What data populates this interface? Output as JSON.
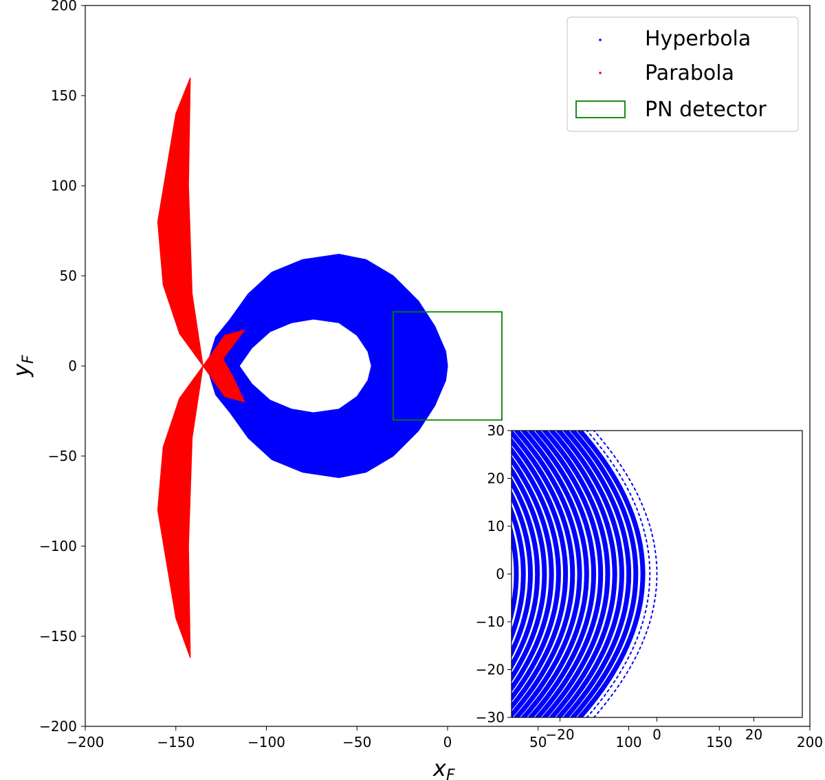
{
  "chart_data": [
    {
      "type": "scatter",
      "xlim": [
        -200,
        200
      ],
      "ylim": [
        -200,
        200
      ],
      "xlabel": "x",
      "xlabel_sub": "F",
      "ylabel": "y",
      "ylabel_sub": "F",
      "x_ticks": [
        -200,
        -150,
        -100,
        -50,
        0,
        50,
        100,
        150,
        200
      ],
      "y_ticks": [
        -200,
        -150,
        -100,
        -50,
        0,
        50,
        100,
        150,
        200
      ],
      "grid": false,
      "legend_position": "top-right",
      "series": [
        {
          "name": "Hyperbola",
          "color": "#0000ff",
          "shape": "closed loop around the focus region: outer boundary spans x from about -133 to about 0, y from -62 to 62; inner hole spans x from -80 to -42, y from -26 to 26",
          "outer_boundary": [
            [
              -133,
              0
            ],
            [
              -128,
              16
            ],
            [
              -120,
              26
            ],
            [
              -110,
              40
            ],
            [
              -97,
              52
            ],
            [
              -80,
              59
            ],
            [
              -60,
              62
            ],
            [
              -45,
              59
            ],
            [
              -30,
              50
            ],
            [
              -16,
              36
            ],
            [
              -7,
              22
            ],
            [
              -1,
              8
            ],
            [
              0,
              0
            ],
            [
              -1,
              -8
            ],
            [
              -7,
              -22
            ],
            [
              -16,
              -36
            ],
            [
              -30,
              -50
            ],
            [
              -45,
              -59
            ],
            [
              -60,
              -62
            ],
            [
              -80,
              -59
            ],
            [
              -97,
              -52
            ],
            [
              -110,
              -40
            ],
            [
              -120,
              -26
            ],
            [
              -128,
              -16
            ]
          ],
          "inner_hole": [
            [
              -115,
              0
            ],
            [
              -108,
              10
            ],
            [
              -98,
              19
            ],
            [
              -86,
              24
            ],
            [
              -74,
              26
            ],
            [
              -60,
              24
            ],
            [
              -50,
              17
            ],
            [
              -44,
              8
            ],
            [
              -42,
              0
            ],
            [
              -44,
              -8
            ],
            [
              -50,
              -17
            ],
            [
              -60,
              -24
            ],
            [
              -74,
              -26
            ],
            [
              -86,
              -24
            ],
            [
              -98,
              -19
            ],
            [
              -108,
              -10
            ]
          ]
        },
        {
          "name": "Parabola",
          "color": "#ff0000",
          "shape": "two crescent lobes meeting near (-135, 0) plus a small bow-tie extending to x about -112",
          "upper_lobe": [
            [
              -135,
              0
            ],
            [
              -141,
              40
            ],
            [
              -143,
              100
            ],
            [
              -142,
              160
            ],
            [
              -150,
              140
            ],
            [
              -160,
              80
            ],
            [
              -157,
              45
            ],
            [
              -148,
              18
            ]
          ],
          "lower_lobe": [
            [
              -135,
              0
            ],
            [
              -148,
              -18
            ],
            [
              -157,
              -45
            ],
            [
              -160,
              -80
            ],
            [
              -150,
              -140
            ],
            [
              -142,
              -162
            ],
            [
              -143,
              -100
            ],
            [
              -141,
              -40
            ]
          ],
          "bowtie": [
            [
              -135,
              0
            ],
            [
              -123,
              17
            ],
            [
              -112,
              20
            ],
            [
              -124,
              4
            ],
            [
              -118,
              -7
            ],
            [
              -112,
              -20
            ],
            [
              -123,
              -17
            ]
          ]
        }
      ],
      "annotations": [
        {
          "name": "PN detector",
          "type": "rectangle",
          "color": "#008000",
          "x_range": [
            -30,
            30
          ],
          "y_range": [
            -30,
            30
          ]
        }
      ]
    },
    {
      "type": "scatter",
      "role": "inset zoom of the PN detector region",
      "xlim": [
        -30,
        30
      ],
      "ylim": [
        -30,
        30
      ],
      "x_ticks": [
        -20,
        0,
        20
      ],
      "y_ticks": [
        -30,
        -20,
        -10,
        0,
        10,
        20,
        30
      ],
      "series": [
        {
          "name": "Hyperbola",
          "color": "#0000ff",
          "shape": "concentric arcs bulging to the right; outermost arc reaches x about 0 at y = 0 and x about -13 at y = +/-30",
          "arc_count": 22,
          "arc_spacing_x": 1.45,
          "outermost_arc_apex_x": 0,
          "outermost_arc_end_x": -13
        }
      ]
    }
  ],
  "overlay_tick_labels": [
    "50",
    "100",
    "150",
    "200"
  ]
}
